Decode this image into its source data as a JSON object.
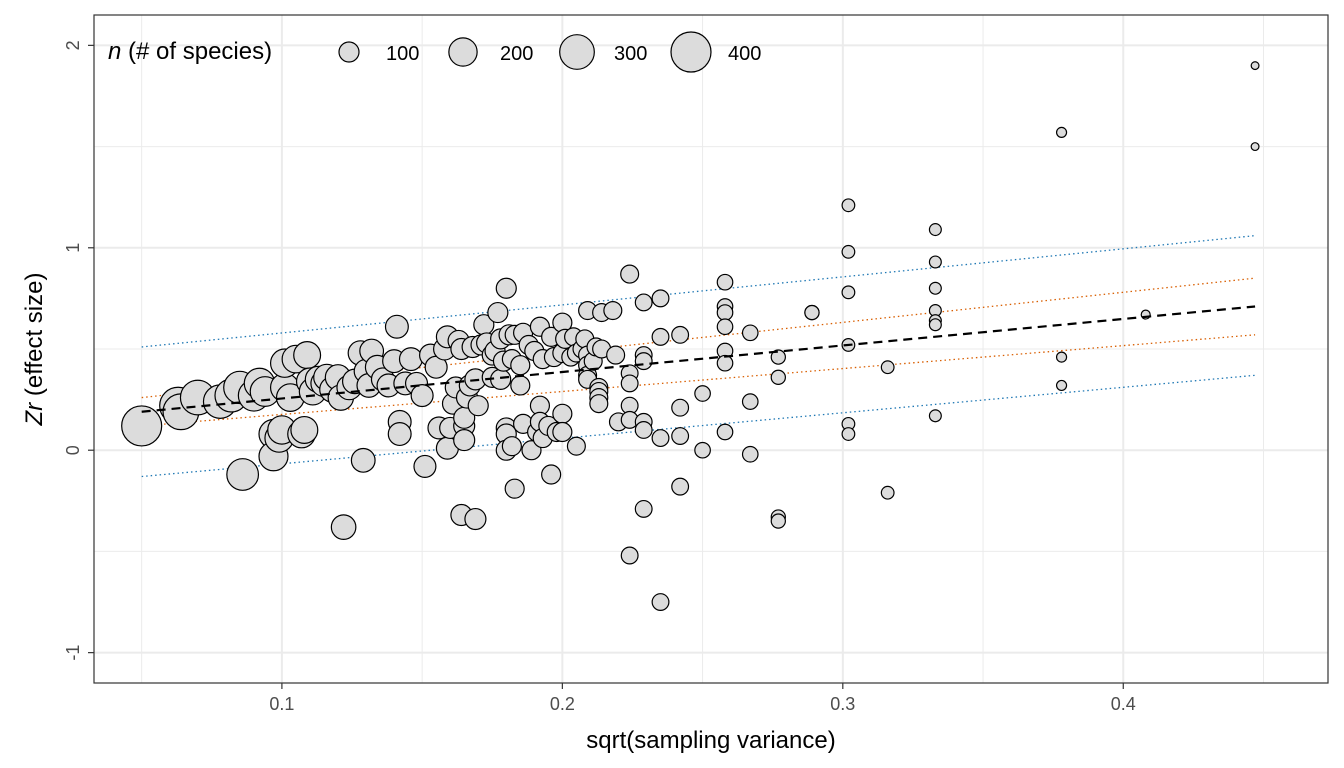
{
  "chart_data": {
    "type": "scatter",
    "xlabel": "sqrt(sampling variance)",
    "ylabel": {
      "italic": "Zr",
      "rest": " (effect size)"
    },
    "xlim": [
      0.033,
      0.473
    ],
    "ylim": [
      -1.15,
      2.15
    ],
    "x_ticks": [
      0.1,
      0.2,
      0.3,
      0.4
    ],
    "x_tick_labels": [
      "0.1",
      "0.2",
      "0.3",
      "0.4"
    ],
    "y_ticks": [
      -1,
      0,
      1,
      2
    ],
    "y_tick_labels": [
      "-1",
      "0",
      "1",
      "2"
    ],
    "grid": true,
    "legend": {
      "position": "top-left",
      "title_italic": "n",
      "title_rest": " (# of species)",
      "entries": [
        {
          "label": "100",
          "value": 100
        },
        {
          "label": "200",
          "value": 200
        },
        {
          "label": "300",
          "value": 300
        },
        {
          "label": "400",
          "value": 400
        }
      ]
    },
    "colors": {
      "point_fill": "#dcdcdc",
      "point_stroke": "#000000",
      "fit_line": "#000000",
      "confidence_band": "#d95f02",
      "prediction_band": "#1f78b4",
      "grid": "#ebebeb"
    },
    "lines": {
      "fit": [
        [
          0.05,
          0.19
        ],
        [
          0.447,
          0.71
        ]
      ],
      "ci_upper": [
        [
          0.05,
          0.26
        ],
        [
          0.447,
          0.85
        ]
      ],
      "ci_lower": [
        [
          0.05,
          0.12
        ],
        [
          0.447,
          0.57
        ]
      ],
      "pi_upper": [
        [
          0.05,
          0.51
        ],
        [
          0.447,
          1.06
        ]
      ],
      "pi_lower": [
        [
          0.05,
          -0.13
        ],
        [
          0.447,
          0.37
        ]
      ]
    },
    "points": [
      {
        "x": 0.05,
        "y": 0.12,
        "n": 400
      },
      {
        "x": 0.063,
        "y": 0.22,
        "n": 340
      },
      {
        "x": 0.064,
        "y": 0.19,
        "n": 320
      },
      {
        "x": 0.07,
        "y": 0.26,
        "n": 300
      },
      {
        "x": 0.078,
        "y": 0.24,
        "n": 280
      },
      {
        "x": 0.082,
        "y": 0.27,
        "n": 270
      },
      {
        "x": 0.085,
        "y": 0.31,
        "n": 260
      },
      {
        "x": 0.086,
        "y": -0.12,
        "n": 250
      },
      {
        "x": 0.09,
        "y": 0.27,
        "n": 240
      },
      {
        "x": 0.092,
        "y": 0.33,
        "n": 230
      },
      {
        "x": 0.094,
        "y": 0.29,
        "n": 220
      },
      {
        "x": 0.097,
        "y": 0.08,
        "n": 210
      },
      {
        "x": 0.097,
        "y": -0.03,
        "n": 210
      },
      {
        "x": 0.099,
        "y": 0.06,
        "n": 200
      },
      {
        "x": 0.1,
        "y": 0.1,
        "n": 200
      },
      {
        "x": 0.101,
        "y": 0.31,
        "n": 200
      },
      {
        "x": 0.101,
        "y": 0.43,
        "n": 200
      },
      {
        "x": 0.103,
        "y": 0.26,
        "n": 190
      },
      {
        "x": 0.105,
        "y": 0.45,
        "n": 190
      },
      {
        "x": 0.107,
        "y": 0.08,
        "n": 190
      },
      {
        "x": 0.108,
        "y": 0.1,
        "n": 180
      },
      {
        "x": 0.109,
        "y": 0.47,
        "n": 180
      },
      {
        "x": 0.11,
        "y": 0.34,
        "n": 180
      },
      {
        "x": 0.111,
        "y": 0.29,
        "n": 180
      },
      {
        "x": 0.113,
        "y": 0.35,
        "n": 170
      },
      {
        "x": 0.115,
        "y": 0.33,
        "n": 170
      },
      {
        "x": 0.116,
        "y": 0.36,
        "n": 170
      },
      {
        "x": 0.118,
        "y": 0.3,
        "n": 160
      },
      {
        "x": 0.12,
        "y": 0.36,
        "n": 160
      },
      {
        "x": 0.121,
        "y": 0.26,
        "n": 160
      },
      {
        "x": 0.122,
        "y": -0.38,
        "n": 150
      },
      {
        "x": 0.124,
        "y": 0.31,
        "n": 150
      },
      {
        "x": 0.126,
        "y": 0.34,
        "n": 150
      },
      {
        "x": 0.128,
        "y": 0.48,
        "n": 150
      },
      {
        "x": 0.129,
        "y": -0.05,
        "n": 140
      },
      {
        "x": 0.13,
        "y": 0.39,
        "n": 140
      },
      {
        "x": 0.131,
        "y": 0.32,
        "n": 140
      },
      {
        "x": 0.132,
        "y": 0.49,
        "n": 140
      },
      {
        "x": 0.134,
        "y": 0.41,
        "n": 140
      },
      {
        "x": 0.136,
        "y": 0.35,
        "n": 130
      },
      {
        "x": 0.138,
        "y": 0.32,
        "n": 130
      },
      {
        "x": 0.14,
        "y": 0.44,
        "n": 130
      },
      {
        "x": 0.141,
        "y": 0.61,
        "n": 130
      },
      {
        "x": 0.142,
        "y": 0.14,
        "n": 130
      },
      {
        "x": 0.142,
        "y": 0.08,
        "n": 130
      },
      {
        "x": 0.144,
        "y": 0.33,
        "n": 130
      },
      {
        "x": 0.146,
        "y": 0.45,
        "n": 130
      },
      {
        "x": 0.148,
        "y": 0.33,
        "n": 120
      },
      {
        "x": 0.15,
        "y": 0.27,
        "n": 120
      },
      {
        "x": 0.151,
        "y": -0.08,
        "n": 120
      },
      {
        "x": 0.153,
        "y": 0.47,
        "n": 120
      },
      {
        "x": 0.155,
        "y": 0.41,
        "n": 120
      },
      {
        "x": 0.156,
        "y": 0.11,
        "n": 120
      },
      {
        "x": 0.158,
        "y": 0.5,
        "n": 120
      },
      {
        "x": 0.159,
        "y": 0.56,
        "n": 120
      },
      {
        "x": 0.159,
        "y": 0.01,
        "n": 120
      },
      {
        "x": 0.16,
        "y": 0.11,
        "n": 110
      },
      {
        "x": 0.161,
        "y": 0.23,
        "n": 110
      },
      {
        "x": 0.162,
        "y": 0.31,
        "n": 110
      },
      {
        "x": 0.163,
        "y": 0.54,
        "n": 110
      },
      {
        "x": 0.164,
        "y": 0.5,
        "n": 110
      },
      {
        "x": 0.164,
        "y": -0.32,
        "n": 110
      },
      {
        "x": 0.165,
        "y": 0.12,
        "n": 110
      },
      {
        "x": 0.165,
        "y": 0.16,
        "n": 110
      },
      {
        "x": 0.165,
        "y": 0.05,
        "n": 110
      },
      {
        "x": 0.166,
        "y": 0.26,
        "n": 110
      },
      {
        "x": 0.167,
        "y": 0.32,
        "n": 110
      },
      {
        "x": 0.168,
        "y": 0.51,
        "n": 110
      },
      {
        "x": 0.169,
        "y": 0.35,
        "n": 110
      },
      {
        "x": 0.169,
        "y": -0.34,
        "n": 110
      },
      {
        "x": 0.17,
        "y": 0.22,
        "n": 100
      },
      {
        "x": 0.171,
        "y": 0.52,
        "n": 100
      },
      {
        "x": 0.172,
        "y": 0.62,
        "n": 100
      },
      {
        "x": 0.173,
        "y": 0.53,
        "n": 100
      },
      {
        "x": 0.175,
        "y": 0.47,
        "n": 100
      },
      {
        "x": 0.175,
        "y": 0.36,
        "n": 100
      },
      {
        "x": 0.176,
        "y": 0.49,
        "n": 100
      },
      {
        "x": 0.177,
        "y": 0.68,
        "n": 100
      },
      {
        "x": 0.178,
        "y": 0.35,
        "n": 100
      },
      {
        "x": 0.178,
        "y": 0.55,
        "n": 100
      },
      {
        "x": 0.179,
        "y": 0.44,
        "n": 100
      },
      {
        "x": 0.18,
        "y": 0.8,
        "n": 100
      },
      {
        "x": 0.18,
        "y": 0.11,
        "n": 100
      },
      {
        "x": 0.18,
        "y": 0.08,
        "n": 100
      },
      {
        "x": 0.18,
        "y": 0.0,
        "n": 100
      },
      {
        "x": 0.181,
        "y": 0.57,
        "n": 100
      },
      {
        "x": 0.182,
        "y": 0.45,
        "n": 90
      },
      {
        "x": 0.182,
        "y": 0.02,
        "n": 90
      },
      {
        "x": 0.183,
        "y": -0.19,
        "n": 90
      },
      {
        "x": 0.183,
        "y": 0.57,
        "n": 90
      },
      {
        "x": 0.185,
        "y": 0.42,
        "n": 90
      },
      {
        "x": 0.185,
        "y": 0.32,
        "n": 90
      },
      {
        "x": 0.186,
        "y": 0.58,
        "n": 90
      },
      {
        "x": 0.186,
        "y": 0.13,
        "n": 90
      },
      {
        "x": 0.188,
        "y": 0.52,
        "n": 90
      },
      {
        "x": 0.189,
        "y": 0.0,
        "n": 90
      },
      {
        "x": 0.19,
        "y": 0.49,
        "n": 90
      },
      {
        "x": 0.191,
        "y": 0.09,
        "n": 90
      },
      {
        "x": 0.192,
        "y": 0.61,
        "n": 90
      },
      {
        "x": 0.192,
        "y": 0.22,
        "n": 90
      },
      {
        "x": 0.192,
        "y": 0.14,
        "n": 90
      },
      {
        "x": 0.193,
        "y": 0.06,
        "n": 90
      },
      {
        "x": 0.193,
        "y": 0.45,
        "n": 90
      },
      {
        "x": 0.195,
        "y": 0.12,
        "n": 90
      },
      {
        "x": 0.196,
        "y": -0.12,
        "n": 90
      },
      {
        "x": 0.196,
        "y": 0.56,
        "n": 90
      },
      {
        "x": 0.197,
        "y": 0.46,
        "n": 90
      },
      {
        "x": 0.198,
        "y": 0.09,
        "n": 90
      },
      {
        "x": 0.2,
        "y": 0.63,
        "n": 90
      },
      {
        "x": 0.2,
        "y": 0.48,
        "n": 90
      },
      {
        "x": 0.2,
        "y": 0.18,
        "n": 90
      },
      {
        "x": 0.2,
        "y": 0.09,
        "n": 90
      },
      {
        "x": 0.201,
        "y": 0.55,
        "n": 90
      },
      {
        "x": 0.203,
        "y": 0.46,
        "n": 80
      },
      {
        "x": 0.204,
        "y": 0.56,
        "n": 80
      },
      {
        "x": 0.205,
        "y": 0.48,
        "n": 80
      },
      {
        "x": 0.205,
        "y": 0.02,
        "n": 80
      },
      {
        "x": 0.207,
        "y": 0.5,
        "n": 80
      },
      {
        "x": 0.208,
        "y": 0.55,
        "n": 80
      },
      {
        "x": 0.209,
        "y": 0.69,
        "n": 80
      },
      {
        "x": 0.209,
        "y": 0.47,
        "n": 80
      },
      {
        "x": 0.209,
        "y": 0.42,
        "n": 80
      },
      {
        "x": 0.209,
        "y": 0.37,
        "n": 80
      },
      {
        "x": 0.209,
        "y": 0.35,
        "n": 80
      },
      {
        "x": 0.211,
        "y": 0.44,
        "n": 80
      },
      {
        "x": 0.212,
        "y": 0.51,
        "n": 80
      },
      {
        "x": 0.213,
        "y": 0.31,
        "n": 80
      },
      {
        "x": 0.213,
        "y": 0.29,
        "n": 80
      },
      {
        "x": 0.213,
        "y": 0.26,
        "n": 80
      },
      {
        "x": 0.213,
        "y": 0.23,
        "n": 80
      },
      {
        "x": 0.214,
        "y": 0.68,
        "n": 80
      },
      {
        "x": 0.214,
        "y": 0.5,
        "n": 80
      },
      {
        "x": 0.218,
        "y": 0.69,
        "n": 80
      },
      {
        "x": 0.219,
        "y": 0.47,
        "n": 80
      },
      {
        "x": 0.22,
        "y": 0.14,
        "n": 80
      },
      {
        "x": 0.224,
        "y": 0.87,
        "n": 80
      },
      {
        "x": 0.224,
        "y": 0.38,
        "n": 70
      },
      {
        "x": 0.224,
        "y": 0.33,
        "n": 70
      },
      {
        "x": 0.224,
        "y": 0.22,
        "n": 70
      },
      {
        "x": 0.224,
        "y": 0.15,
        "n": 70
      },
      {
        "x": 0.224,
        "y": -0.52,
        "n": 70
      },
      {
        "x": 0.229,
        "y": 0.73,
        "n": 70
      },
      {
        "x": 0.229,
        "y": 0.47,
        "n": 70
      },
      {
        "x": 0.229,
        "y": 0.44,
        "n": 70
      },
      {
        "x": 0.229,
        "y": 0.14,
        "n": 70
      },
      {
        "x": 0.229,
        "y": 0.1,
        "n": 70
      },
      {
        "x": 0.229,
        "y": -0.29,
        "n": 70
      },
      {
        "x": 0.235,
        "y": 0.75,
        "n": 70
      },
      {
        "x": 0.235,
        "y": 0.56,
        "n": 70
      },
      {
        "x": 0.235,
        "y": 0.06,
        "n": 70
      },
      {
        "x": 0.235,
        "y": -0.75,
        "n": 70
      },
      {
        "x": 0.242,
        "y": 0.57,
        "n": 70
      },
      {
        "x": 0.242,
        "y": 0.21,
        "n": 70
      },
      {
        "x": 0.242,
        "y": 0.07,
        "n": 70
      },
      {
        "x": 0.242,
        "y": -0.18,
        "n": 70
      },
      {
        "x": 0.25,
        "y": 0.28,
        "n": 60
      },
      {
        "x": 0.25,
        "y": 0.0,
        "n": 60
      },
      {
        "x": 0.258,
        "y": 0.83,
        "n": 60
      },
      {
        "x": 0.258,
        "y": 0.71,
        "n": 60
      },
      {
        "x": 0.258,
        "y": 0.68,
        "n": 60
      },
      {
        "x": 0.258,
        "y": 0.61,
        "n": 60
      },
      {
        "x": 0.258,
        "y": 0.49,
        "n": 60
      },
      {
        "x": 0.258,
        "y": 0.43,
        "n": 60
      },
      {
        "x": 0.258,
        "y": 0.09,
        "n": 60
      },
      {
        "x": 0.267,
        "y": 0.58,
        "n": 60
      },
      {
        "x": 0.267,
        "y": 0.24,
        "n": 60
      },
      {
        "x": 0.267,
        "y": -0.02,
        "n": 60
      },
      {
        "x": 0.277,
        "y": 0.46,
        "n": 50
      },
      {
        "x": 0.277,
        "y": 0.36,
        "n": 50
      },
      {
        "x": 0.277,
        "y": -0.33,
        "n": 50
      },
      {
        "x": 0.277,
        "y": -0.35,
        "n": 50
      },
      {
        "x": 0.289,
        "y": 0.68,
        "n": 50
      },
      {
        "x": 0.289,
        "y": 0.68,
        "n": 50
      },
      {
        "x": 0.302,
        "y": 1.21,
        "n": 40
      },
      {
        "x": 0.302,
        "y": 0.98,
        "n": 40
      },
      {
        "x": 0.302,
        "y": 0.78,
        "n": 40
      },
      {
        "x": 0.302,
        "y": 0.52,
        "n": 40
      },
      {
        "x": 0.302,
        "y": 0.13,
        "n": 40
      },
      {
        "x": 0.302,
        "y": 0.08,
        "n": 40
      },
      {
        "x": 0.316,
        "y": 0.41,
        "n": 40
      },
      {
        "x": 0.316,
        "y": -0.21,
        "n": 40
      },
      {
        "x": 0.333,
        "y": 1.09,
        "n": 35
      },
      {
        "x": 0.333,
        "y": 0.93,
        "n": 35
      },
      {
        "x": 0.333,
        "y": 0.8,
        "n": 35
      },
      {
        "x": 0.333,
        "y": 0.69,
        "n": 35
      },
      {
        "x": 0.333,
        "y": 0.64,
        "n": 35
      },
      {
        "x": 0.333,
        "y": 0.62,
        "n": 35
      },
      {
        "x": 0.333,
        "y": 0.17,
        "n": 35
      },
      {
        "x": 0.378,
        "y": 1.57,
        "n": 25
      },
      {
        "x": 0.378,
        "y": 0.46,
        "n": 25
      },
      {
        "x": 0.378,
        "y": 0.32,
        "n": 25
      },
      {
        "x": 0.408,
        "y": 0.67,
        "n": 20
      },
      {
        "x": 0.447,
        "y": 1.9,
        "n": 15
      },
      {
        "x": 0.447,
        "y": 1.5,
        "n": 15
      }
    ]
  }
}
